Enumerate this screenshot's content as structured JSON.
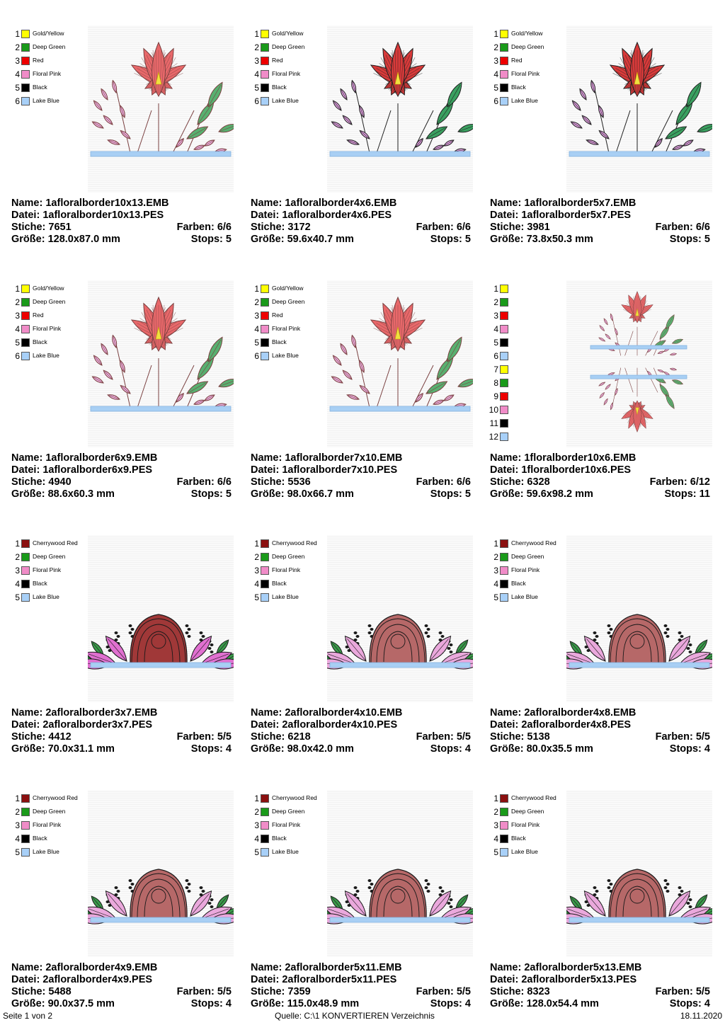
{
  "labels": {
    "name": "Name:",
    "file": "Datei:",
    "stitches": "Stiche:",
    "colors": "Farben:",
    "size": "Größe:",
    "stops": "Stops:"
  },
  "palettes": {
    "p1": [
      {
        "num": "1",
        "name": "Gold/Yellow",
        "color": "#ffff00"
      },
      {
        "num": "2",
        "name": "Deep Green",
        "color": "#1a9a1a"
      },
      {
        "num": "3",
        "name": "Red",
        "color": "#ee0000"
      },
      {
        "num": "4",
        "name": "Floral Pink",
        "color": "#f08cc8"
      },
      {
        "num": "5",
        "name": "Black",
        "color": "#000000"
      },
      {
        "num": "6",
        "name": "Lake Blue",
        "color": "#a8d0f8"
      }
    ],
    "p2": [
      {
        "num": "1",
        "name": "",
        "color": "#ffff00"
      },
      {
        "num": "2",
        "name": "",
        "color": "#1a9a1a"
      },
      {
        "num": "3",
        "name": "",
        "color": "#ee0000"
      },
      {
        "num": "4",
        "name": "",
        "color": "#f08cc8"
      },
      {
        "num": "5",
        "name": "",
        "color": "#000000"
      },
      {
        "num": "6",
        "name": "",
        "color": "#a8d0f8"
      },
      {
        "num": "7",
        "name": "",
        "color": "#ffff00"
      },
      {
        "num": "8",
        "name": "",
        "color": "#1a9a1a"
      },
      {
        "num": "9",
        "name": "",
        "color": "#ee0000"
      },
      {
        "num": "10",
        "name": "",
        "color": "#f08cc8"
      },
      {
        "num": "11",
        "name": "",
        "color": "#000000"
      },
      {
        "num": "12",
        "name": "",
        "color": "#a8d0f8"
      }
    ],
    "p3": [
      {
        "num": "1",
        "name": "Cherrywood Red",
        "color": "#8b1010"
      },
      {
        "num": "2",
        "name": "Deep Green",
        "color": "#1a9a1a"
      },
      {
        "num": "3",
        "name": "Floral Pink",
        "color": "#f08cc8"
      },
      {
        "num": "4",
        "name": "Black",
        "color": "#000000"
      },
      {
        "num": "5",
        "name": "Lake Blue",
        "color": "#a8d0f8"
      }
    ]
  },
  "designs": [
    {
      "name": "1afloralborder10x13.EMB",
      "file": "1afloralborder10x13.PES",
      "stitches": "7651",
      "colors": "6/6",
      "size": "128.0x87.0 mm",
      "stops": "5",
      "palette": "p1",
      "art": "lily",
      "tone": "light"
    },
    {
      "name": "1afloralborder4x6.EMB",
      "file": "1afloralborder4x6.PES",
      "stitches": "3172",
      "colors": "6/6",
      "size": "59.6x40.7 mm",
      "stops": "5",
      "palette": "p1",
      "art": "lily",
      "tone": "dark"
    },
    {
      "name": "1afloralborder5x7.EMB",
      "file": "1afloralborder5x7.PES",
      "stitches": "3981",
      "colors": "6/6",
      "size": "73.8x50.3 mm",
      "stops": "5",
      "palette": "p1",
      "art": "lily",
      "tone": "dark"
    },
    {
      "name": "1afloralborder6x9.EMB",
      "file": "1afloralborder6x9.PES",
      "stitches": "4940",
      "colors": "6/6",
      "size": "88.6x60.3 mm",
      "stops": "5",
      "palette": "p1",
      "art": "lily",
      "tone": "light"
    },
    {
      "name": "1afloralborder7x10.EMB",
      "file": "1afloralborder7x10.PES",
      "stitches": "5536",
      "colors": "6/6",
      "size": "98.0x66.7 mm",
      "stops": "5",
      "palette": "p1",
      "art": "lily",
      "tone": "light"
    },
    {
      "name": "1floralborder10x6.EMB",
      "file": "1floralborder10x6.PES",
      "stitches": "6328",
      "colors": "6/12",
      "size": "59.6x98.2 mm",
      "stops": "11",
      "palette": "p2",
      "art": "double",
      "tone": "light"
    },
    {
      "name": "2afloralborder3x7.EMB",
      "file": "2afloralborder3x7.PES",
      "stitches": "4412",
      "colors": "5/5",
      "size": "70.0x31.1 mm",
      "stops": "4",
      "palette": "p3",
      "art": "rose",
      "tone": "dark"
    },
    {
      "name": "2afloralborder4x10.EMB",
      "file": "2afloralborder4x10.PES",
      "stitches": "6218",
      "colors": "5/5",
      "size": "98.0x42.0 mm",
      "stops": "4",
      "palette": "p3",
      "art": "rose",
      "tone": "light"
    },
    {
      "name": "2afloralborder4x8.EMB",
      "file": "2afloralborder4x8.PES",
      "stitches": "5138",
      "colors": "5/5",
      "size": "80.0x35.5 mm",
      "stops": "4",
      "palette": "p3",
      "art": "rose",
      "tone": "light"
    },
    {
      "name": "2afloralborder4x9.EMB",
      "file": "2afloralborder4x9.PES",
      "stitches": "5488",
      "colors": "5/5",
      "size": "90.0x37.5 mm",
      "stops": "4",
      "palette": "p3",
      "art": "rose",
      "tone": "light"
    },
    {
      "name": "2afloralborder5x11.EMB",
      "file": "2afloralborder5x11.PES",
      "stitches": "7359",
      "colors": "5/5",
      "size": "115.0x48.9 mm",
      "stops": "4",
      "palette": "p3",
      "art": "rose",
      "tone": "light"
    },
    {
      "name": "2afloralborder5x13.EMB",
      "file": "2afloralborder5x13.PES",
      "stitches": "8323",
      "colors": "5/5",
      "size": "128.0x54.4 mm",
      "stops": "4",
      "palette": "p3",
      "art": "rose",
      "tone": "light"
    }
  ],
  "footer": {
    "page": "Seite 1 von 2",
    "source": "Quelle: C:\\1 KONVERTIEREN Verzeichnis",
    "date": "18.11.2020"
  }
}
